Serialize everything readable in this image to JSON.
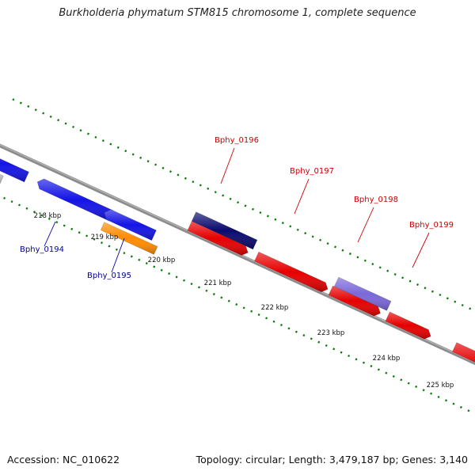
{
  "title": "Burkholderia phymatum STM815 chromosome 1, complete sequence",
  "footer": {
    "accession": "Accession: NC_010622",
    "summary": "Topology: circular; Length: 3,479,187 bp; Genes: 3,140"
  },
  "ticks": [
    "218 kbp",
    "219 kbp",
    "220 kbp",
    "221 kbp",
    "222 kbp",
    "223 kbp",
    "224 kbp",
    "225 kbp"
  ],
  "colors": {
    "blue_gene": "#1414e6",
    "navy_gene": "#0a0a6e",
    "red_gene": "#e60000",
    "orange_gene": "#ff8c00",
    "lavender_gene": "#7b68d8",
    "grey_gene": "#c8c8c8",
    "forward_label": "#cc0000",
    "reverse_label": "#000099",
    "tick_mark": "#0a7a0a",
    "backbone": "#8c8c8c"
  },
  "gene_labels": [
    {
      "name": "Bphy_0194",
      "strand": "reverse"
    },
    {
      "name": "Bphy_0195",
      "strand": "reverse"
    },
    {
      "name": "Bphy_0196",
      "strand": "forward"
    },
    {
      "name": "Bphy_0197",
      "strand": "forward"
    },
    {
      "name": "Bphy_0198",
      "strand": "forward"
    },
    {
      "name": "Bphy_0199",
      "strand": "forward"
    }
  ]
}
